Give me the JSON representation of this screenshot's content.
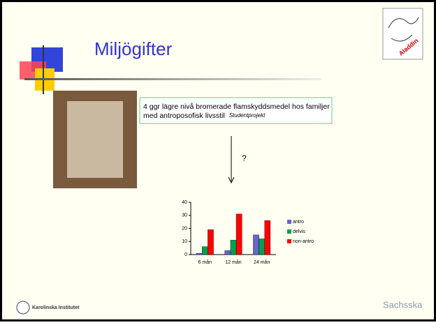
{
  "slide": {
    "title": "Miljögifter",
    "box_text": "4 ggr lägre nivå bromerade flamskyddsmedel hos familjer med antroposofisk livsstil",
    "box_note": "Studentprojekt",
    "question": "?",
    "logo_top": "Aladdin",
    "logo_left": "Karolinska Institutet",
    "logo_right": "Sachsska"
  },
  "chart_data": {
    "type": "bar",
    "categories": [
      "6 mån",
      "12 mån",
      "24 mån"
    ],
    "series": [
      {
        "name": "antro",
        "color": "#6666cc",
        "values": [
          1,
          3,
          15
        ]
      },
      {
        "name": "delvis",
        "color": "#00a050",
        "values": [
          6,
          11,
          12
        ]
      },
      {
        "name": "non-antro",
        "color": "#ff0000",
        "values": [
          19,
          31,
          26
        ]
      }
    ],
    "ylim": [
      0,
      40
    ],
    "yticks": [
      0,
      10,
      20,
      30,
      40
    ]
  }
}
